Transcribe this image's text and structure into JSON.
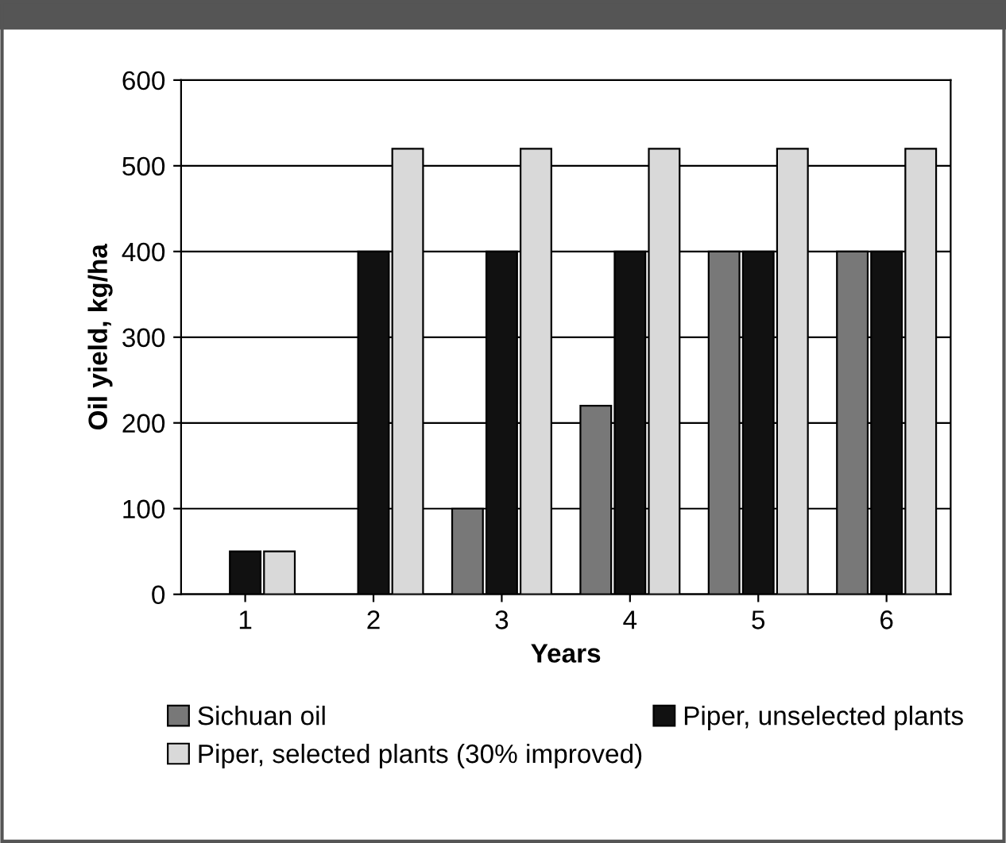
{
  "chart_data": {
    "type": "bar",
    "xlabel": "Years",
    "ylabel": "Oil yield, kg/ha",
    "categories": [
      "1",
      "2",
      "3",
      "4",
      "5",
      "6"
    ],
    "series": [
      {
        "name": "Sichuan oil",
        "color": "#787878",
        "values": [
          null,
          null,
          100,
          220,
          400,
          400
        ]
      },
      {
        "name": "Piper, unselected plants",
        "color": "#111111",
        "values": [
          50,
          400,
          400,
          400,
          400,
          400
        ]
      },
      {
        "name": "Piper, selected plants (30% improved)",
        "color": "#d9d9d9",
        "values": [
          50,
          520,
          520,
          520,
          520,
          520
        ]
      }
    ],
    "ylim": [
      0,
      600
    ],
    "yticks": [
      0,
      100,
      200,
      300,
      400,
      500,
      600
    ],
    "grid": "y",
    "legend": "bottom"
  }
}
